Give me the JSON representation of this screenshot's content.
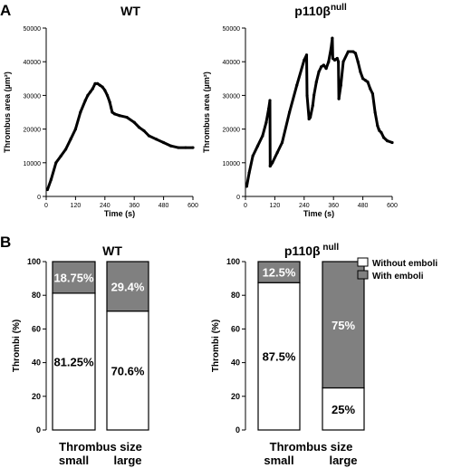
{
  "panels": [
    {
      "letter": "A"
    },
    {
      "letter": "B"
    }
  ],
  "chart_data": [
    {
      "type": "line",
      "panel": "A",
      "title": "WT",
      "title_sup": "",
      "xlabel": "Time (s)",
      "ylabel": "Thrombus area (µm²)",
      "xlim": [
        0,
        600
      ],
      "ylim": [
        0,
        50000
      ],
      "x_ticks": [
        "0",
        "120",
        "240",
        "360",
        "480",
        "600"
      ],
      "y_ticks": [
        "0",
        "10000",
        "20000",
        "30000",
        "40000",
        "50000"
      ],
      "grid": false,
      "color": "#000000",
      "series": [
        {
          "x": [
            5,
            20,
            40,
            60,
            80,
            100,
            120,
            140,
            160,
            170,
            180,
            190,
            200,
            210,
            220,
            230,
            240,
            250,
            260,
            265,
            270,
            280,
            300,
            330,
            360,
            380,
            400,
            420,
            450,
            480,
            510,
            540,
            570,
            600
          ],
          "y": [
            2000,
            5000,
            10000,
            12000,
            14000,
            17000,
            20000,
            25000,
            28500,
            30000,
            31000,
            32000,
            33500,
            33500,
            33000,
            32500,
            31500,
            30000,
            28000,
            26500,
            25000,
            24500,
            24000,
            23500,
            22000,
            20500,
            19500,
            18000,
            17000,
            16000,
            15000,
            14500,
            14500,
            14500
          ]
        }
      ]
    },
    {
      "type": "line",
      "panel": "A",
      "title": "p110β",
      "title_sup": "null",
      "xlabel": "Time (s)",
      "ylabel": "Thrombus area (µm²)",
      "xlim": [
        0,
        600
      ],
      "ylim": [
        0,
        50000
      ],
      "x_ticks": [
        "0",
        "120",
        "240",
        "360",
        "480",
        "600"
      ],
      "y_ticks": [
        "0",
        "10000",
        "20000",
        "30000",
        "40000",
        "50000"
      ],
      "grid": false,
      "color": "#000000",
      "series": [
        {
          "x": [
            5,
            15,
            30,
            50,
            70,
            85,
            95,
            100,
            101,
            110,
            130,
            150,
            180,
            210,
            240,
            250,
            252,
            260,
            265,
            275,
            280,
            290,
            300,
            310,
            320,
            330,
            340,
            350,
            355,
            357,
            365,
            375,
            380,
            382,
            390,
            400,
            420,
            440,
            450,
            460,
            470,
            480,
            490,
            500,
            510,
            520,
            530,
            540,
            545,
            548,
            555,
            565,
            580,
            600
          ],
          "y": [
            3000,
            7000,
            12000,
            15000,
            18000,
            22000,
            26000,
            28500,
            9000,
            10000,
            13000,
            16000,
            25000,
            33000,
            40500,
            42000,
            30000,
            23000,
            23500,
            27000,
            30000,
            34000,
            37000,
            38500,
            39000,
            38000,
            40000,
            44000,
            47000,
            41000,
            40500,
            41000,
            40000,
            29000,
            33000,
            40000,
            43000,
            43000,
            42500,
            40000,
            37000,
            35000,
            34500,
            34000,
            32000,
            30500,
            25000,
            21000,
            20000,
            19500,
            19000,
            17500,
            16500,
            16000
          ]
        }
      ]
    },
    {
      "type": "bar",
      "panel": "B",
      "stacked": true,
      "title": "WT",
      "title_sup": "",
      "ylabel": "Thrombi (%)",
      "xlabel": "Thrombus size",
      "categories": [
        "small",
        "large"
      ],
      "ylim": [
        0,
        100
      ],
      "y_ticks": [
        "0",
        "20",
        "40",
        "60",
        "80",
        "100"
      ],
      "series": [
        {
          "name": "Without emboli",
          "color": "#ffffff",
          "values": [
            81.25,
            70.6
          ],
          "labels": [
            "81.25%",
            "70.6%"
          ]
        },
        {
          "name": "With emboli",
          "color": "#808080",
          "values": [
            18.75,
            29.4
          ],
          "labels": [
            "18.75%",
            "29.4%"
          ]
        }
      ]
    },
    {
      "type": "bar",
      "panel": "B",
      "stacked": true,
      "title": "p110β",
      "title_sup": " null",
      "ylabel": "Thrombi (%)",
      "xlabel": "Thrombus size",
      "categories": [
        "small",
        "large"
      ],
      "ylim": [
        0,
        100
      ],
      "y_ticks": [
        "0",
        "20",
        "40",
        "60",
        "80",
        "100"
      ],
      "series": [
        {
          "name": "Without emboli",
          "color": "#ffffff",
          "values": [
            87.5,
            25
          ],
          "labels": [
            "87.5%",
            "25%"
          ]
        },
        {
          "name": "With emboli",
          "color": "#808080",
          "values": [
            12.5,
            75
          ],
          "labels": [
            "12.5%",
            "75%"
          ]
        }
      ]
    }
  ],
  "legend": {
    "placement": "top-right",
    "items": [
      {
        "label": "Without emboli",
        "color": "#ffffff"
      },
      {
        "label": "With emboli",
        "color": "#808080"
      }
    ]
  }
}
